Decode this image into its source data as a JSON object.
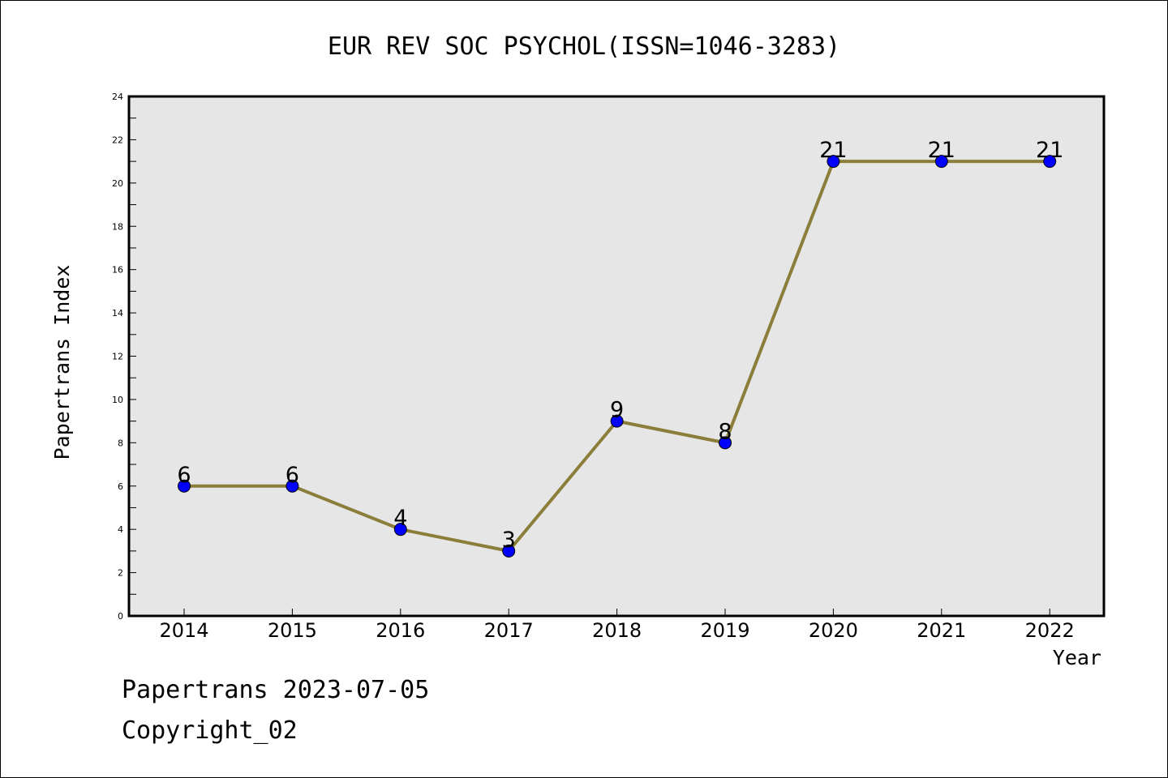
{
  "chart_data": {
    "type": "line",
    "title": "EUR REV SOC PSYCHOL(ISSN=1046-3283)",
    "xlabel": "Year",
    "ylabel": "Papertrans Index",
    "categories": [
      "2014",
      "2015",
      "2016",
      "2017",
      "2018",
      "2019",
      "2020",
      "2021",
      "2022"
    ],
    "series": [
      {
        "values": [
          6,
          6,
          4,
          3,
          9,
          8,
          21,
          21,
          21
        ]
      }
    ],
    "ylim": [
      0,
      24
    ],
    "yticks": [
      0,
      2,
      4,
      6,
      8,
      10,
      12,
      14,
      16,
      18,
      20,
      22,
      24
    ],
    "grid": false,
    "data_labels": true,
    "colors": {
      "line": "#8B7D3A",
      "marker": "#0000FF",
      "plot_bg": "#E6E6E6"
    }
  },
  "footer": {
    "line1": "Papertrans 2023-07-05",
    "line2": "Copyright_02"
  }
}
